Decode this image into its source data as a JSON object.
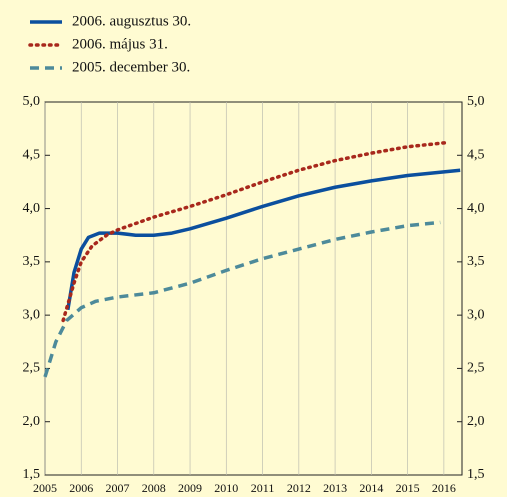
{
  "chart_data": {
    "type": "line",
    "series": [
      {
        "name": "2006. augusztus 30.",
        "color": "#0b4f9e",
        "style": "solid",
        "x": [
          2005.63,
          2005.8,
          2006.0,
          2006.2,
          2006.5,
          2007,
          2007.5,
          2008,
          2008.5,
          2009,
          2010,
          2011,
          2012,
          2013,
          2014,
          2015,
          2016.45
        ],
        "values": [
          3.05,
          3.4,
          3.62,
          3.73,
          3.77,
          3.77,
          3.75,
          3.75,
          3.77,
          3.81,
          3.91,
          4.02,
          4.12,
          4.2,
          4.26,
          4.31,
          4.36
        ]
      },
      {
        "name": "2006. május 31.",
        "color": "#a8281c",
        "style": "dotted",
        "x": [
          2005.5,
          2005.8,
          2006.0,
          2006.3,
          2006.7,
          2007,
          2008,
          2009,
          2010,
          2011,
          2012,
          2013,
          2014,
          2015,
          2016.1
        ],
        "values": [
          2.95,
          3.3,
          3.5,
          3.65,
          3.75,
          3.8,
          3.92,
          4.02,
          4.13,
          4.25,
          4.36,
          4.45,
          4.52,
          4.58,
          4.62
        ]
      },
      {
        "name": "2005. december 30.",
        "color": "#4d8a9a",
        "style": "dashed",
        "x": [
          2005,
          2005.3,
          2005.6,
          2006,
          2006.4,
          2007,
          2008,
          2009,
          2010,
          2011,
          2012,
          2013,
          2014,
          2015,
          2015.9
        ],
        "values": [
          2.42,
          2.75,
          2.95,
          3.07,
          3.13,
          3.17,
          3.21,
          3.3,
          3.42,
          3.53,
          3.62,
          3.71,
          3.78,
          3.84,
          3.87
        ]
      }
    ],
    "xlim": [
      2005,
      2016.5
    ],
    "xticks": [
      2005,
      2006,
      2007,
      2008,
      2009,
      2010,
      2011,
      2012,
      2013,
      2014,
      2015,
      2016
    ],
    "ylim": [
      1.5,
      5.0
    ],
    "yticks": [
      {
        "value": 1.5,
        "label": "1,5"
      },
      {
        "value": 2.0,
        "label": "2,0"
      },
      {
        "value": 2.5,
        "label": "2,5"
      },
      {
        "value": 3.0,
        "label": "3,0"
      },
      {
        "value": 3.5,
        "label": "3,5"
      },
      {
        "value": 4.0,
        "label": "4,0"
      },
      {
        "value": 4.5,
        "label": "4,5"
      },
      {
        "value": 5.0,
        "label": "5,0"
      }
    ],
    "y2lim": [
      1.5,
      5.0
    ],
    "y2ticks": [
      {
        "value": 1.5,
        "label": "1,5"
      },
      {
        "value": 2.0,
        "label": "2,0"
      },
      {
        "value": 2.5,
        "label": "2,5"
      },
      {
        "value": 3.0,
        "label": "3,0"
      },
      {
        "value": 3.5,
        "label": "3,5"
      },
      {
        "value": 4.0,
        "label": "4,0"
      },
      {
        "value": 4.5,
        "label": "4,5"
      },
      {
        "value": 5.0,
        "label": "5,0"
      }
    ],
    "grid": "x",
    "legend": "top-left"
  }
}
